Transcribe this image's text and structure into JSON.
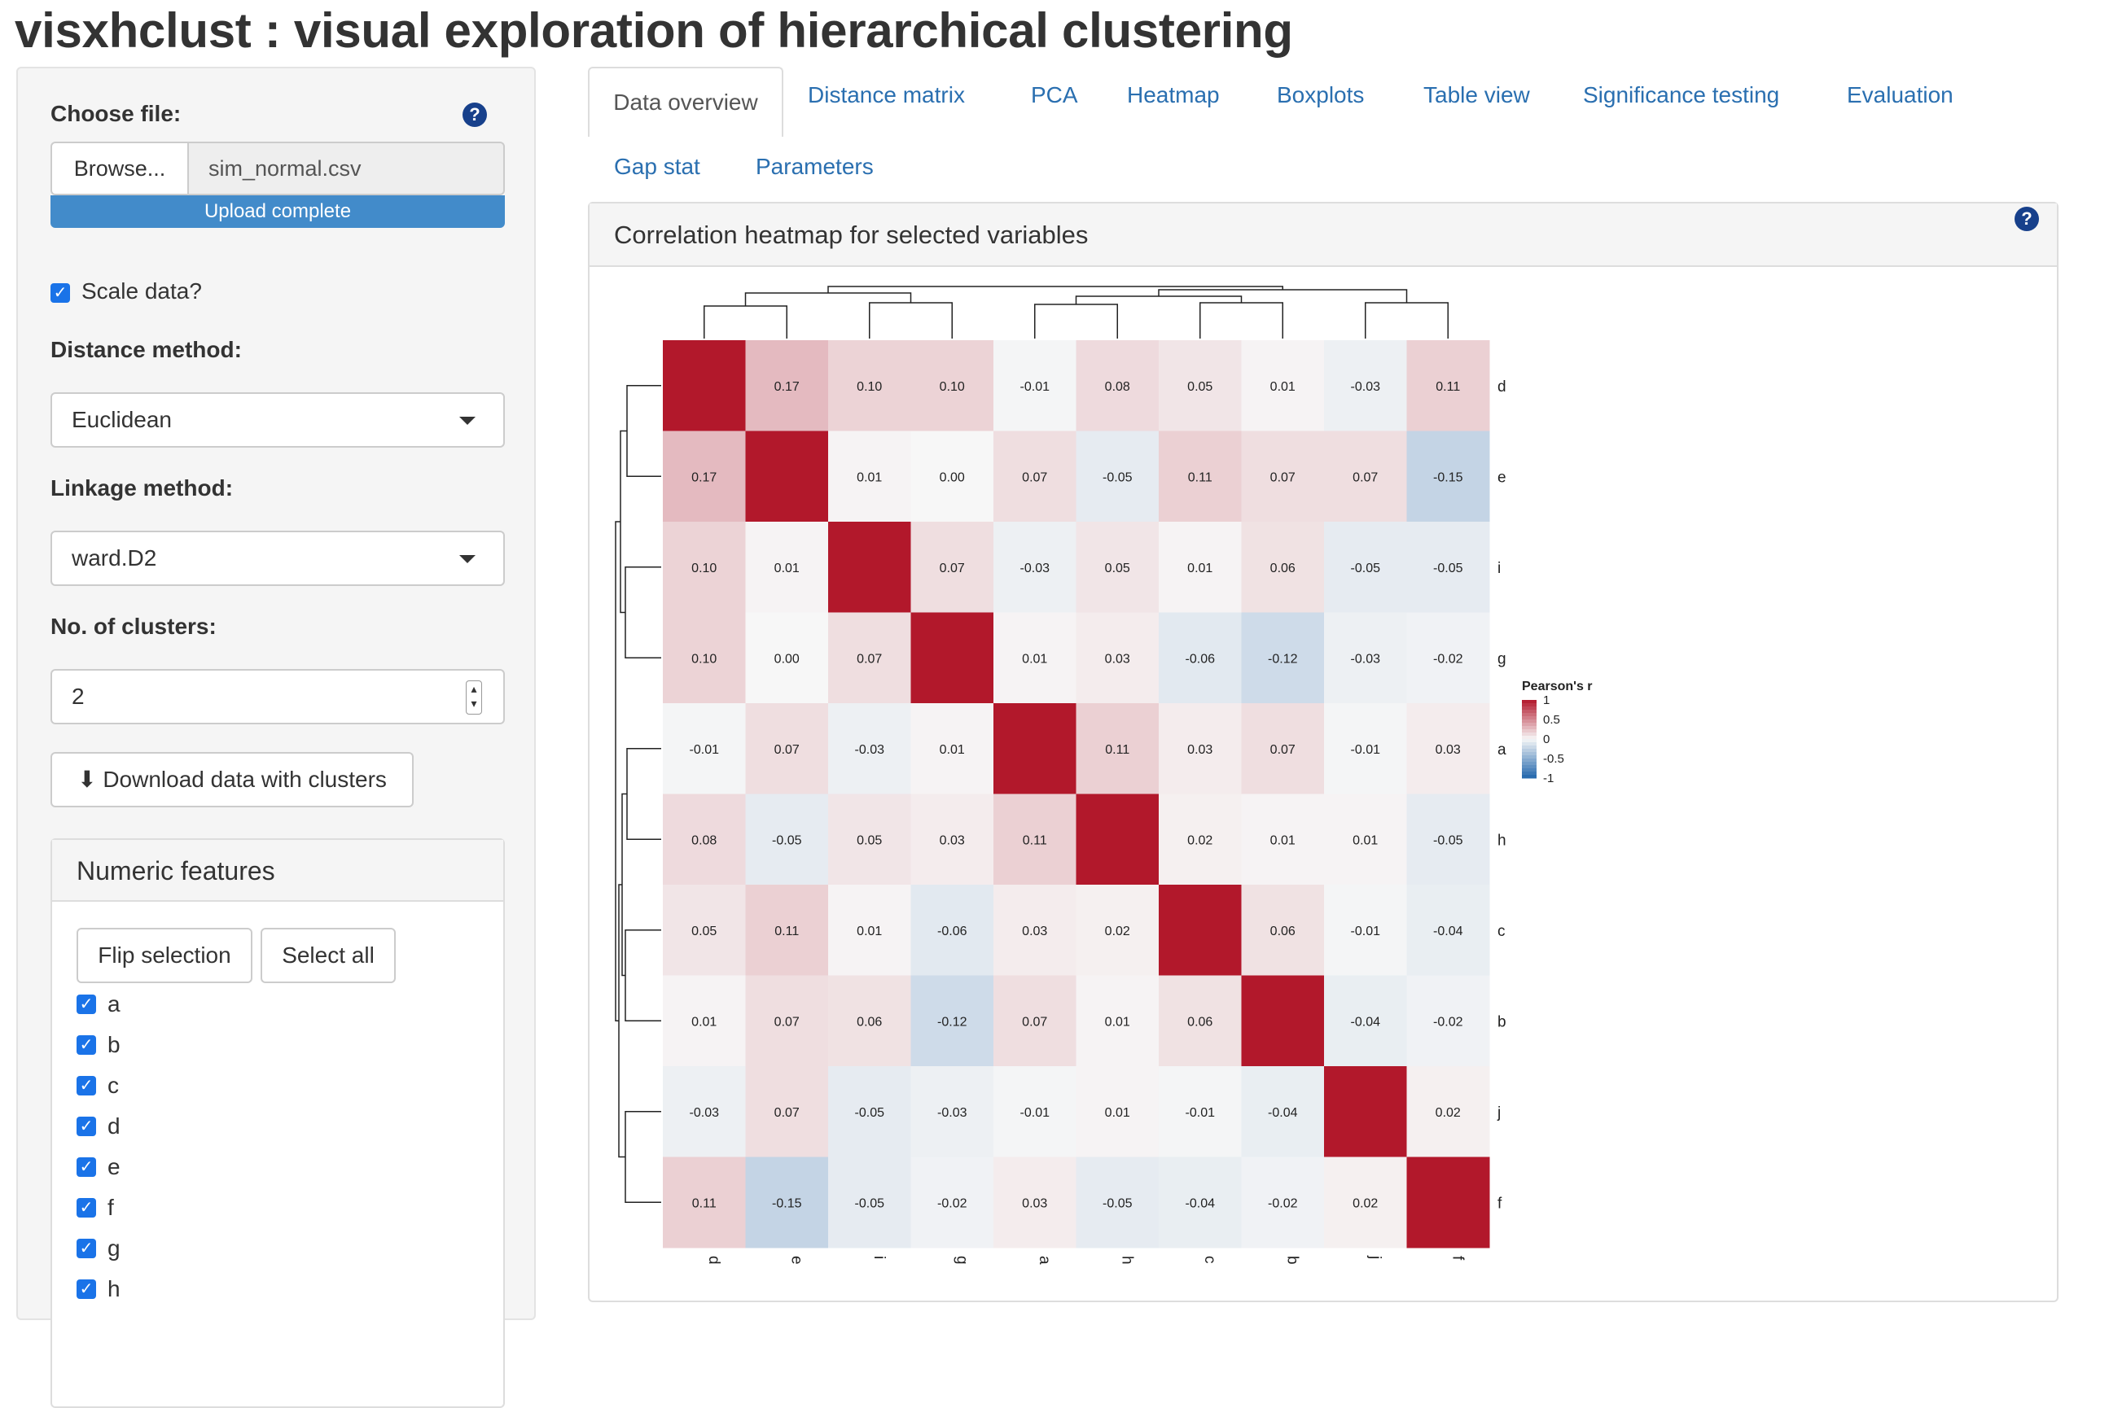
{
  "app": {
    "title": "visxhclust : visual exploration of hierarchical clustering"
  },
  "sidebar": {
    "choose_file_label": "Choose file:",
    "browse_label": "Browse...",
    "file_name": "sim_normal.csv",
    "upload_status": "Upload complete",
    "scale_label": "Scale data?",
    "scale_checked": true,
    "distance_label": "Distance method:",
    "distance_value": "Euclidean",
    "linkage_label": "Linkage method:",
    "linkage_value": "ward.D2",
    "clusters_label": "No. of clusters:",
    "clusters_value": "2",
    "download_label": "Download data with clusters",
    "features": {
      "title": "Numeric features",
      "flip_label": "Flip selection",
      "select_all_label": "Select all",
      "items": [
        "a",
        "b",
        "c",
        "d",
        "e",
        "f",
        "g",
        "h"
      ]
    }
  },
  "tabs": [
    "Data overview",
    "Distance matrix",
    "PCA",
    "Heatmap",
    "Boxplots",
    "Table view",
    "Significance testing",
    "Evaluation",
    "Gap stat",
    "Parameters"
  ],
  "active_tab": "Data overview",
  "main": {
    "panel_title": "Correlation heatmap for selected variables"
  },
  "colors": {
    "accent": "#428bca",
    "link": "#2a6fb0",
    "help": "#17408b",
    "checkbox": "#1a73e8",
    "heat_high": "#b2182b",
    "heat_low": "#2166ac"
  },
  "chart_data": {
    "type": "heatmap",
    "rows": [
      "d",
      "e",
      "i",
      "g",
      "a",
      "h",
      "c",
      "b",
      "j",
      "f"
    ],
    "cols": [
      "d",
      "e",
      "i",
      "g",
      "a",
      "h",
      "c",
      "b",
      "j",
      "f"
    ],
    "values": [
      [
        1.0,
        0.17,
        0.1,
        0.1,
        -0.01,
        0.08,
        0.05,
        0.01,
        -0.03,
        0.11
      ],
      [
        0.17,
        1.0,
        0.01,
        -0.0,
        0.07,
        -0.05,
        0.11,
        0.07,
        0.07,
        -0.15
      ],
      [
        0.1,
        0.01,
        1.0,
        0.07,
        -0.03,
        0.05,
        0.01,
        0.06,
        -0.05,
        -0.05
      ],
      [
        0.1,
        -0.0,
        0.07,
        1.0,
        0.01,
        0.03,
        -0.06,
        -0.12,
        -0.03,
        -0.02
      ],
      [
        -0.01,
        0.07,
        -0.03,
        0.01,
        1.0,
        0.11,
        0.03,
        0.07,
        -0.01,
        0.03
      ],
      [
        0.08,
        -0.05,
        0.05,
        0.03,
        0.11,
        1.0,
        0.02,
        0.01,
        0.01,
        -0.05
      ],
      [
        0.05,
        0.11,
        0.01,
        -0.06,
        0.03,
        0.02,
        1.0,
        0.06,
        -0.01,
        -0.04
      ],
      [
        0.01,
        0.07,
        0.06,
        -0.12,
        0.07,
        0.01,
        0.06,
        1.0,
        -0.04,
        -0.02
      ],
      [
        -0.03,
        0.07,
        -0.05,
        -0.03,
        -0.01,
        0.01,
        -0.01,
        -0.04,
        1.0,
        0.02
      ],
      [
        0.11,
        -0.15,
        -0.05,
        -0.02,
        0.03,
        -0.05,
        -0.04,
        -0.02,
        0.02,
        1.0
      ]
    ],
    "diagonal_labeled": false,
    "legend": {
      "title": "Pearson's r",
      "ticks": [
        "1",
        "0.5",
        "0",
        "-0.5",
        "-1"
      ],
      "placement": "right"
    },
    "range": [
      -1,
      1
    ]
  }
}
